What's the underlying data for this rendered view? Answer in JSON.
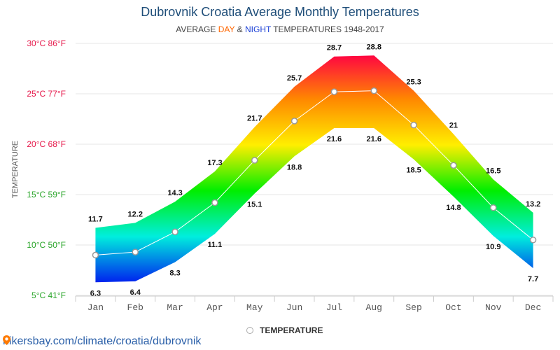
{
  "title": "Dubrovnik Croatia Average Monthly Temperatures",
  "subtitle": {
    "prefix": "AVERAGE ",
    "day": "DAY",
    "amp": " & ",
    "night": "NIGHT",
    "suffix": " TEMPERATURES 1948-2017"
  },
  "legend": {
    "label": "TEMPERATURE"
  },
  "source": {
    "text": "hikersbay.com/climate/croatia/dubrovnik"
  },
  "chart_data": {
    "type": "area",
    "title": "Dubrovnik Croatia Average Monthly Temperatures",
    "ylabel": "TEMPERATURE",
    "ylim": [
      5,
      30
    ],
    "grid": true,
    "legend_position": "bottom",
    "categories": [
      "Jan",
      "Feb",
      "Mar",
      "Apr",
      "May",
      "Jun",
      "Jul",
      "Aug",
      "Sep",
      "Oct",
      "Nov",
      "Dec"
    ],
    "y_ticks": [
      {
        "value": 30,
        "label": "30°C 86°F",
        "color": "#e6194b"
      },
      {
        "value": 25,
        "label": "25°C 77°F",
        "color": "#e6194b"
      },
      {
        "value": 20,
        "label": "20°C 68°F",
        "color": "#e6194b"
      },
      {
        "value": 15,
        "label": "15°C 59°F",
        "color": "#2aa52a"
      },
      {
        "value": 10,
        "label": "10°C 50°F",
        "color": "#2aa52a"
      },
      {
        "value": 5,
        "label": "5°C 41°F",
        "color": "#2aa52a"
      }
    ],
    "series": [
      {
        "name": "DAY",
        "values": [
          11.7,
          12.2,
          14.3,
          17.3,
          21.7,
          25.7,
          28.7,
          28.8,
          25.3,
          21,
          16.5,
          13.2
        ]
      },
      {
        "name": "NIGHT",
        "values": [
          6.3,
          6.4,
          8.3,
          11.1,
          15.1,
          18.8,
          21.6,
          21.6,
          18.5,
          14.8,
          10.9,
          7.7
        ]
      },
      {
        "name": "TEMPERATURE",
        "values": [
          9,
          9.3,
          11.3,
          14.2,
          18.4,
          22.3,
          25.2,
          25.3,
          21.9,
          17.9,
          13.7,
          10.5
        ]
      }
    ],
    "colors": {
      "gradient": [
        "#ff0044",
        "#ff8800",
        "#ffee00",
        "#00ee00",
        "#00eedd",
        "#0022ee"
      ],
      "mean_line": "#ffffff",
      "marker_fill": "#ffffff",
      "marker_stroke": "#999999"
    }
  }
}
